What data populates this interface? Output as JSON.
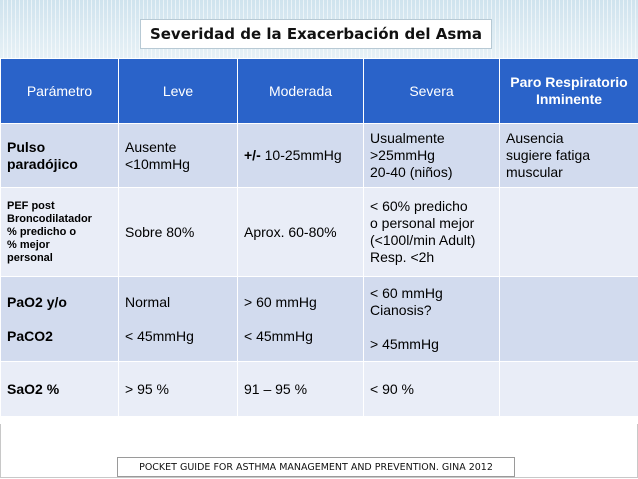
{
  "title": "Severidad de la Exacerbación del Asma",
  "header": {
    "parametro": "Parámetro",
    "leve": "Leve",
    "moderada": "Moderada",
    "severa": "Severa",
    "paro": "Paro Respiratorio Inminente"
  },
  "rows": [
    {
      "param": "Pulso paradójico",
      "leve": [
        "Ausente",
        "<10mmHg"
      ],
      "moderada_prefix": "+/-",
      "moderada": "10-25mmHg",
      "severa": [
        "Usualmente",
        ">25mmHg",
        "20-40 (niños)"
      ],
      "paro": [
        "Ausencia",
        "sugiere fatiga",
        "muscular"
      ]
    },
    {
      "param": [
        "PEF post",
        "Broncodilatador",
        "% predicho o",
        "% mejor",
        "personal"
      ],
      "leve": "Sobre 80%",
      "moderada": "Aprox. 60-80%",
      "severa": [
        "< 60% predicho",
        "o personal mejor",
        "(<100l/min Adult)",
        "Resp. <2h"
      ],
      "paro": ""
    },
    {
      "param": [
        "PaO2 y/o",
        "PaCO2"
      ],
      "leve": [
        "Normal",
        "< 45mmHg"
      ],
      "moderada": [
        "> 60 mmHg",
        "< 45mmHg"
      ],
      "severa": [
        "< 60 mmHg",
        "Cianosis?",
        "> 45mmHg"
      ],
      "paro": ""
    },
    {
      "param": "SaO2 %",
      "leve": "> 95 %",
      "moderada": "91 – 95 %",
      "severa": "< 90 %",
      "paro": ""
    }
  ],
  "footer": "POCKET GUIDE FOR ASTHMA MANAGEMENT AND PREVENTION. GINA 2012"
}
